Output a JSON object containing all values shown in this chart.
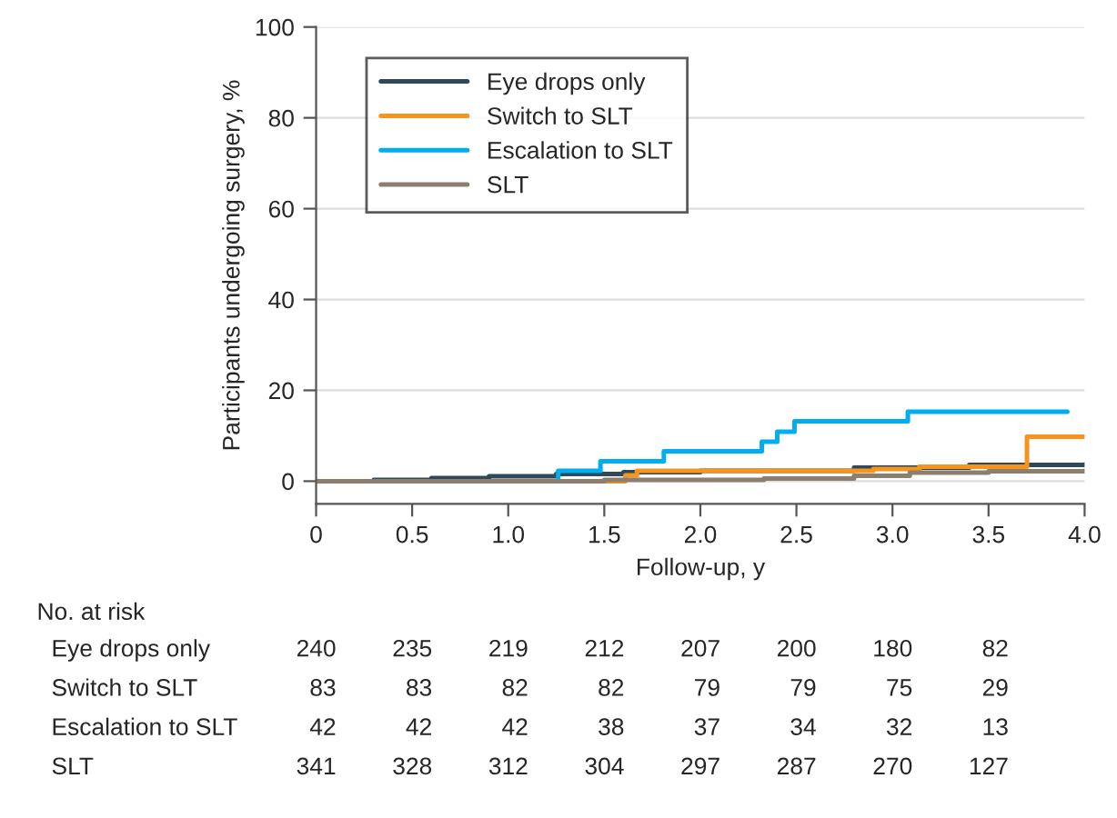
{
  "chart_data": {
    "type": "step",
    "xlabel": "Follow-up, y",
    "ylabel": "Participants undergoing surgery, %",
    "xlim": [
      0,
      4
    ],
    "xticks": [
      0,
      0.5,
      {
        "value": 1,
        "label": "1.0"
      },
      1.5,
      {
        "value": 2,
        "label": "2.0"
      },
      2.5,
      {
        "value": 3,
        "label": "3.0"
      },
      3.5,
      {
        "value": 4,
        "label": "4.0"
      }
    ],
    "ylim": [
      -5,
      100
    ],
    "yticks": [
      0,
      20,
      40,
      60,
      80,
      100
    ],
    "grid": "y",
    "legend": "top left",
    "line_style": "solid",
    "marker": "none",
    "series": [
      {
        "name": "Eye drops only",
        "color": "#2e4a5a",
        "x": [
          0,
          0.3,
          0.6,
          0.9,
          1.25,
          1.6,
          2.0,
          2.8,
          3.4,
          4.0
        ],
        "values": [
          0,
          0.3,
          0.7,
          1.1,
          1.6,
          2.0,
          2.3,
          3.0,
          3.6,
          3.7
        ]
      },
      {
        "name": "Switch to SLT",
        "color": "#f7941d",
        "x": [
          0,
          1.61,
          1.67,
          2.9,
          3.14,
          3.7,
          4.0
        ],
        "values": [
          0,
          1.3,
          2.3,
          2.7,
          3.2,
          9.8,
          9.8
        ]
      },
      {
        "name": "Escalation to SLT",
        "color": "#00aeef",
        "x": [
          0,
          1.26,
          1.48,
          1.81,
          2.32,
          2.4,
          2.49,
          3.08,
          3.91
        ],
        "values": [
          0,
          2.3,
          4.4,
          6.6,
          8.7,
          10.9,
          13.2,
          15.3,
          15.3
        ]
      },
      {
        "name": "SLT",
        "color": "#8c7f70",
        "x": [
          0,
          1.5,
          2.33,
          2.8,
          3.09,
          3.5,
          4.0
        ],
        "values": [
          0,
          0.3,
          0.6,
          1.2,
          1.9,
          2.2,
          2.3
        ]
      }
    ],
    "annotations": [
      "No. at risk",
      "Eye drops only",
      "240",
      "235",
      "219",
      "212",
      "207",
      "200",
      "180",
      "82",
      "Switch to SLT",
      "83",
      "83",
      "82",
      "82",
      "79",
      "79",
      "75",
      "29",
      "Escalation to SLT",
      "42",
      "42",
      "42",
      "38",
      "37",
      "34",
      "32",
      "13",
      "SLT",
      "341",
      "328",
      "312",
      "304",
      "297",
      "287",
      "270",
      "127"
    ]
  }
}
